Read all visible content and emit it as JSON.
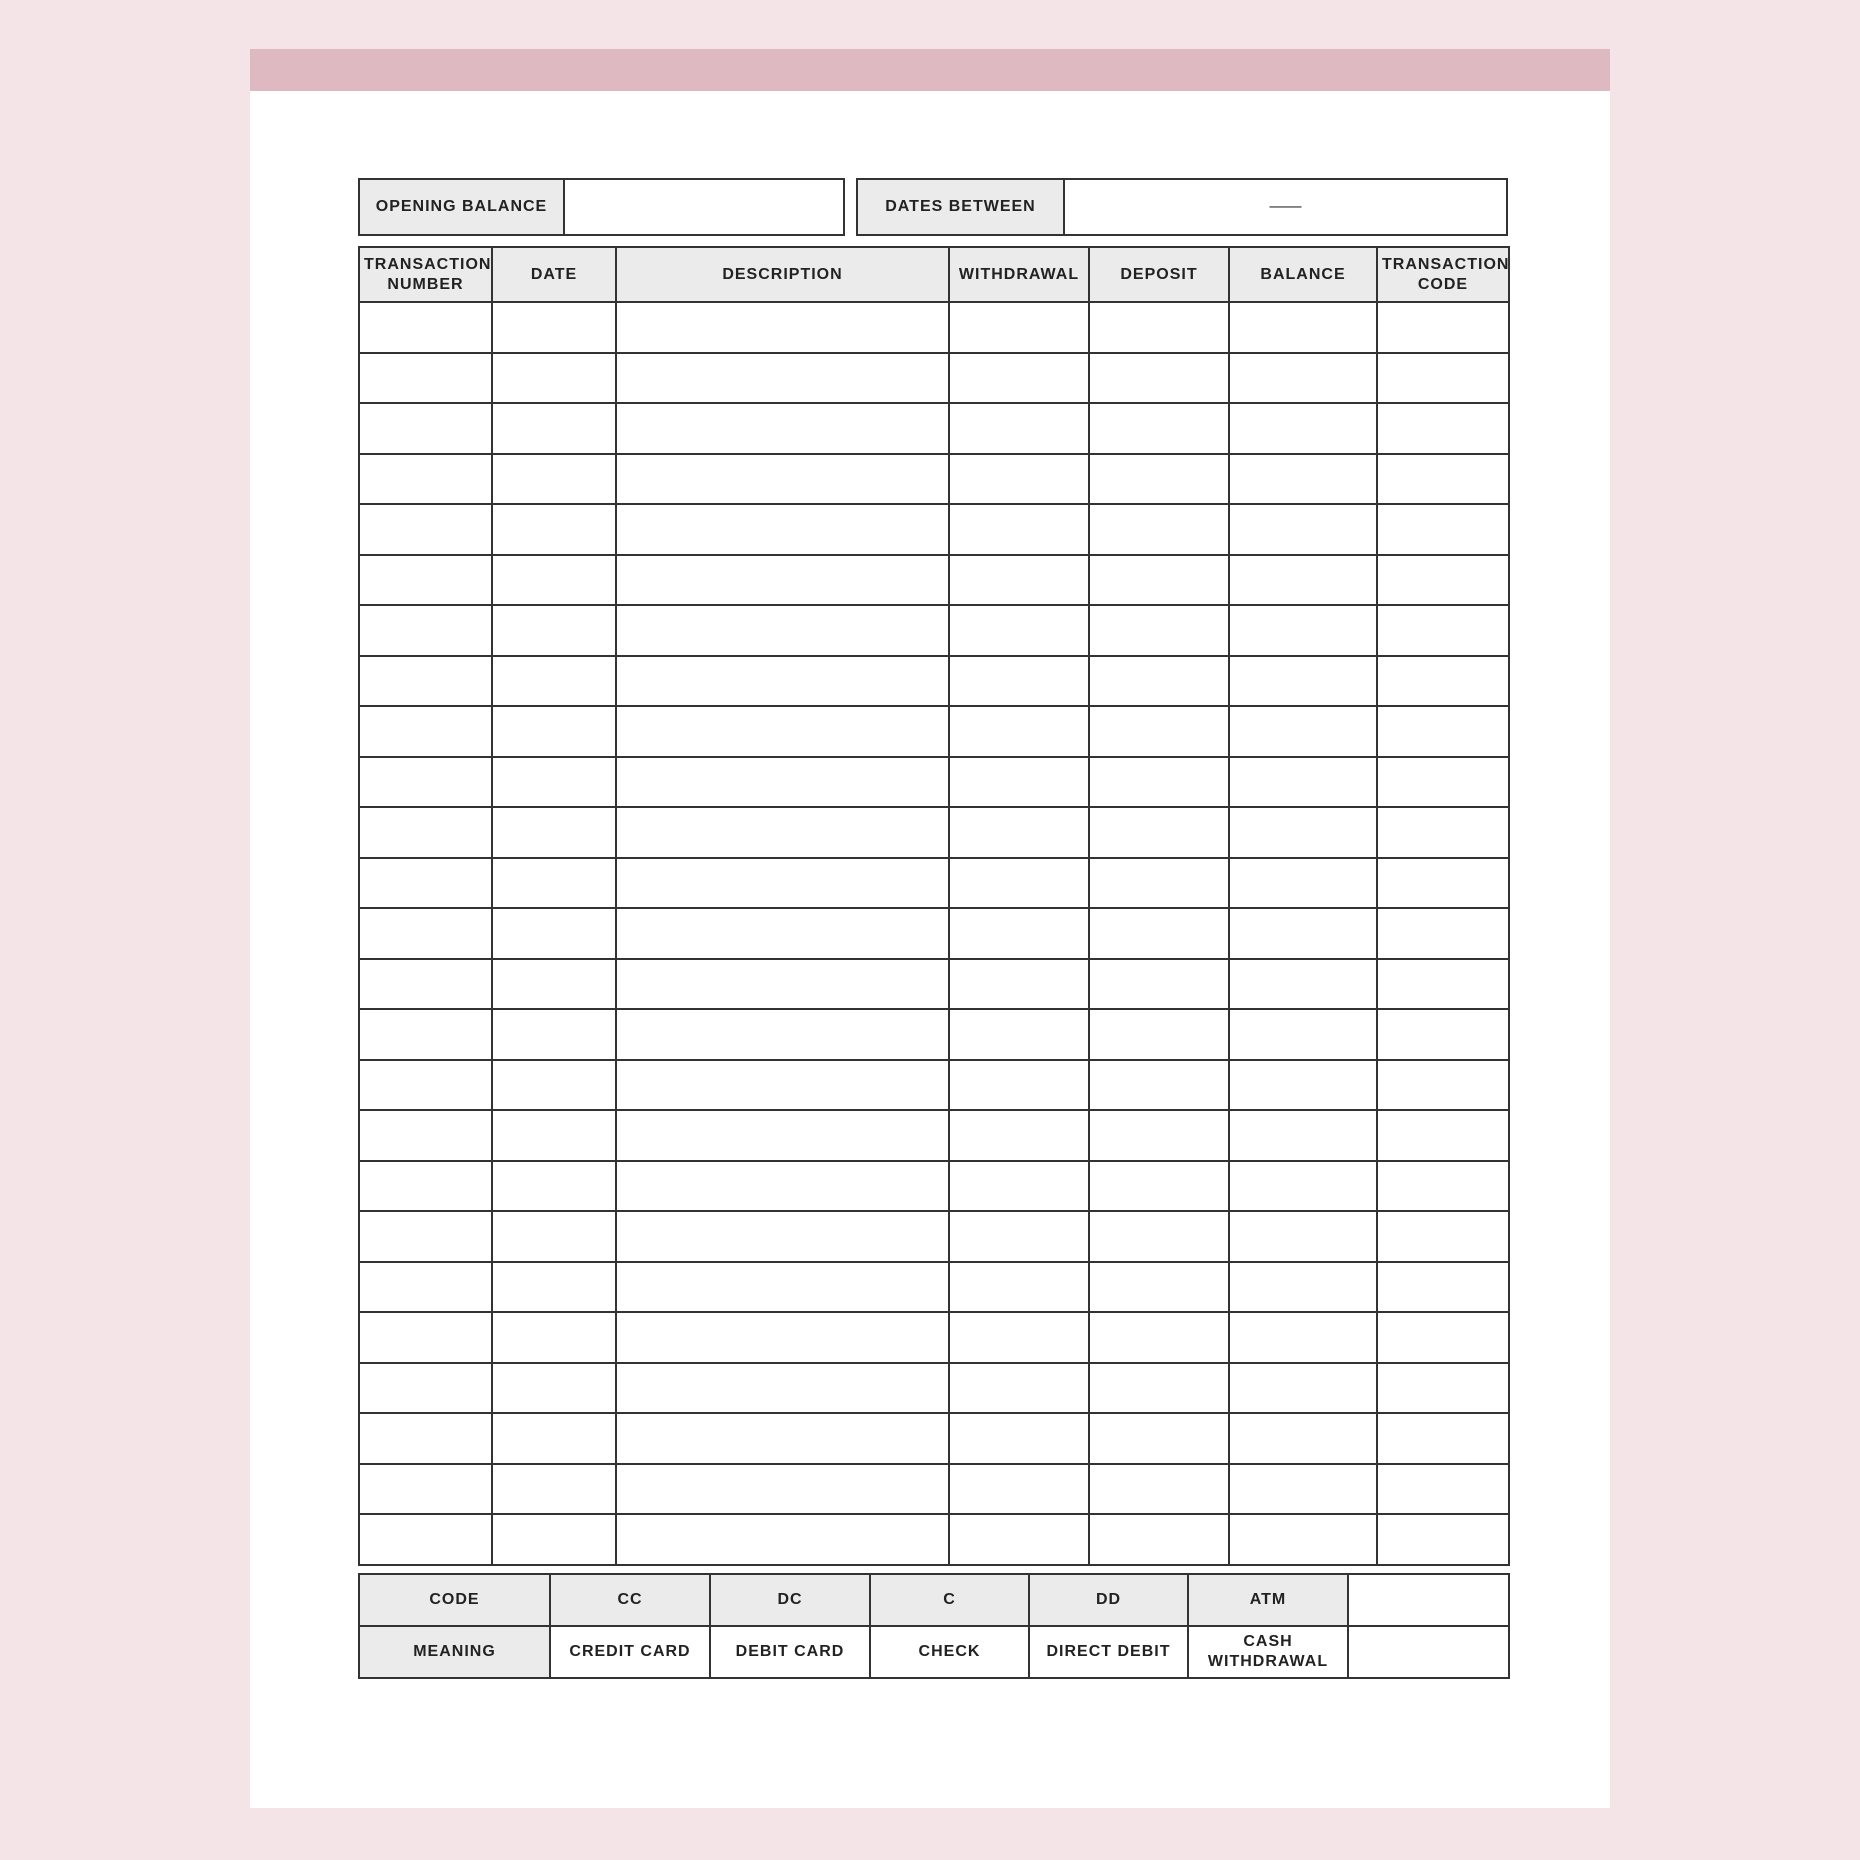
{
  "summary": {
    "opening_balance_label": "OPENING BALANCE",
    "opening_balance_value": "",
    "dates_between_label": "DATES BETWEEN",
    "dates_between_separator": "——"
  },
  "ledger": {
    "headers": [
      "TRANSACTION NUMBER",
      "DATE",
      "DESCRIPTION",
      "WITHDRAWAL",
      "DEPOSIT",
      "BALANCE",
      "TRANSACTION CODE"
    ]
  },
  "codes": {
    "code_label": "CODE",
    "meaning_label": "MEANING",
    "items": [
      {
        "code": "CC",
        "meaning": "CREDIT CARD"
      },
      {
        "code": "DC",
        "meaning": "DEBIT CARD"
      },
      {
        "code": "C",
        "meaning": "CHECK"
      },
      {
        "code": "DD",
        "meaning": "DIRECT DEBIT"
      },
      {
        "code": "ATM",
        "meaning": "CASH WITHDRAWAL"
      },
      {
        "code": "",
        "meaning": ""
      }
    ]
  },
  "colors": {
    "background": "#f4e3e7",
    "band": "#dfb9c1",
    "header_fill": "#ebebeb"
  }
}
